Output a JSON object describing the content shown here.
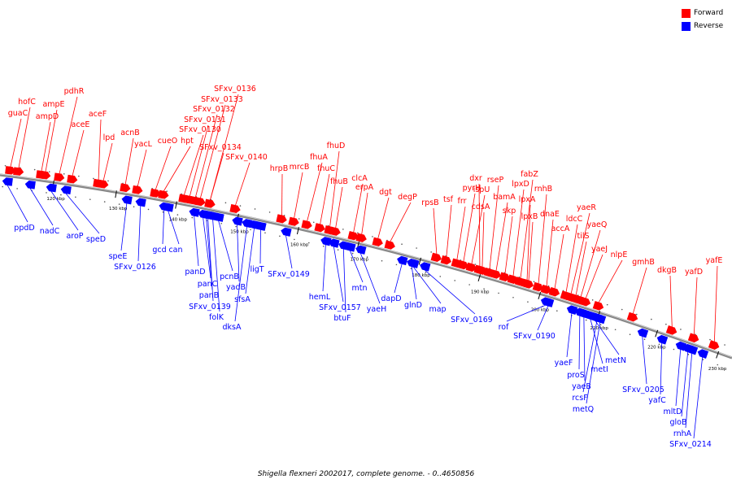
{
  "legend": {
    "forward_label": "Forward",
    "reverse_label": "Reverse",
    "forward_color": "#ff0000",
    "reverse_color": "#0000ff"
  },
  "caption": "Shigella flexneri 2002017, complete genome. - 0..4650856",
  "backbone_color": "#888888",
  "ticks": [
    "120 kbp",
    "130 kbp",
    "140 kbp",
    "150 kbp",
    "160 kbp",
    "170 kbp",
    "180 kbp",
    "190 kbp",
    "200 kbp",
    "210 kbp",
    "220 kbp",
    "230 kbp"
  ],
  "forward_genes": [
    "guaC",
    "hofC",
    "ampD",
    "ampE",
    "pdhR",
    "aceE",
    "aceF",
    "lpd",
    "acnB",
    "yacL",
    "cueO",
    "hpt",
    "SFxv_0130",
    "SFxv_0131",
    "SFxv_0132",
    "SFxv_0133",
    "SFxv_0134",
    "SFxv_0136",
    "SFxv_0140",
    "hrpB",
    "mrcB",
    "fhuA",
    "fhuC",
    "fhuD",
    "fhuB",
    "clcA",
    "erpA",
    "dgt",
    "degP",
    "rpsB",
    "tsf",
    "frr",
    "pyrH",
    "ispU",
    "dxr",
    "cdsA",
    "rseP",
    "bamA",
    "skp",
    "lpxD",
    "fabZ",
    "lpxA",
    "lpxB",
    "rnhB",
    "dnaE",
    "accA",
    "ldcC",
    "yaeR",
    "tilS",
    "yaeQ",
    "yaeJ",
    "nlpE",
    "gmhB",
    "dkgB",
    "yafD",
    "yafE"
  ],
  "reverse_genes": [
    "ppdD",
    "nadC",
    "aroP",
    "speD",
    "speE",
    "SFxv_0126",
    "gcd",
    "can",
    "panD",
    "panC",
    "panB",
    "SFxv_0139",
    "folK",
    "pcnB",
    "yadB",
    "dksA",
    "sfsA",
    "ligT",
    "SFxv_0149",
    "hemL",
    "SFxv_0157",
    "btuF",
    "mtn",
    "yaeH",
    "dapD",
    "glnD",
    "map",
    "SFxv_0169",
    "rof",
    "SFxv_0190",
    "yaeF",
    "proS",
    "yaeB",
    "metI",
    "metN",
    "rcsF",
    "metQ",
    "SFxv_0205",
    "yafC",
    "mltD",
    "gloB",
    "rnhA",
    "SFxv_0214"
  ]
}
